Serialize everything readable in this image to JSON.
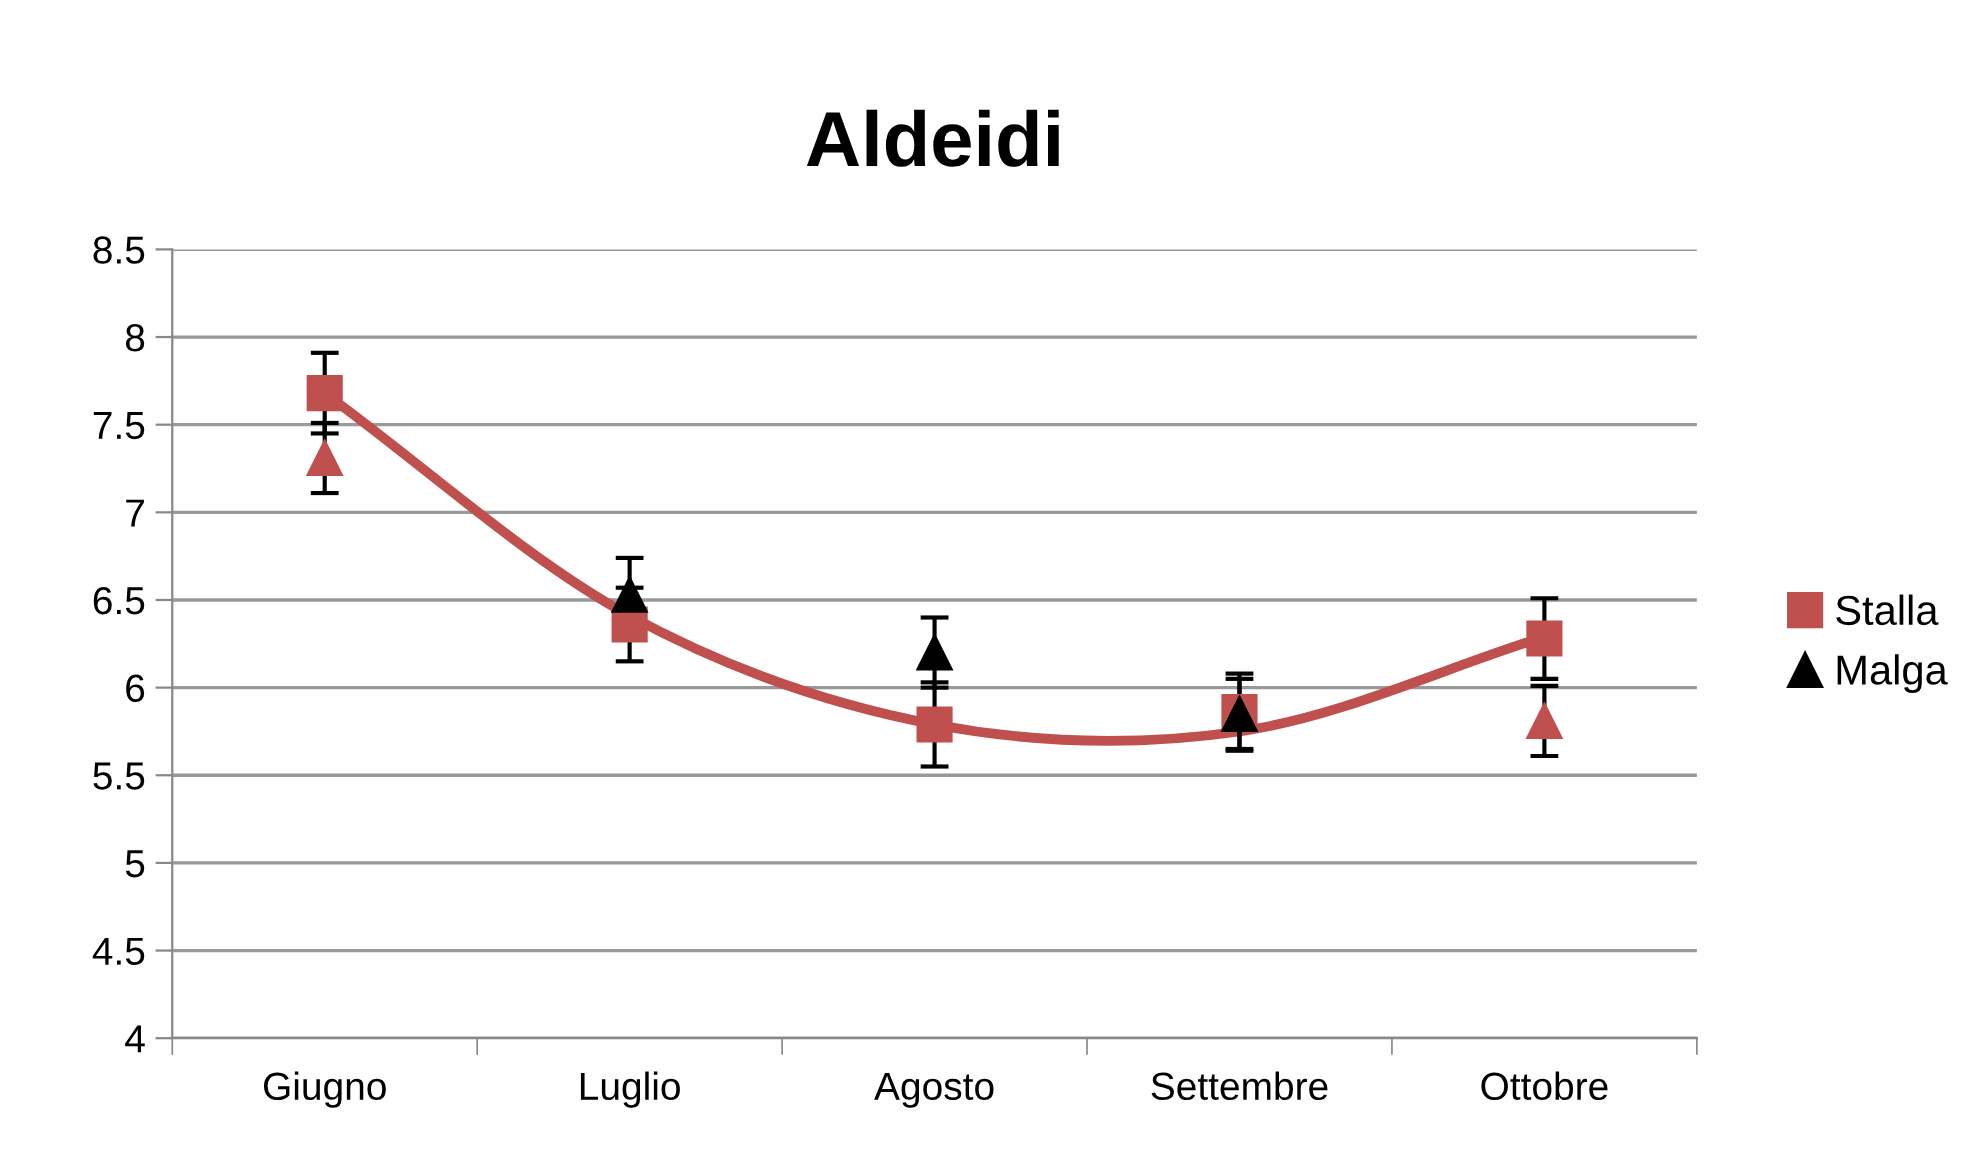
{
  "chart_data": {
    "type": "scatter",
    "title": "Aldeidi",
    "categories": [
      "Giugno",
      "Luglio",
      "Agosto",
      "Settembre",
      "Ottobre"
    ],
    "series": [
      {
        "name": "Stalla",
        "marker": "square",
        "color": "#c0504d",
        "values": [
          7.68,
          6.36,
          5.79,
          5.86,
          6.28
        ],
        "errors": [
          0.23,
          0.21,
          0.24,
          0.22,
          0.23
        ]
      },
      {
        "name": "Malga",
        "marker": "triangle",
        "color": "#000000",
        "colors": [
          "#c0504d",
          "#000000",
          "#000000",
          "#000000",
          "#c0504d"
        ],
        "values": [
          7.31,
          6.53,
          6.2,
          5.85,
          5.81
        ],
        "errors": [
          0.2,
          0.21,
          0.2,
          0.2,
          0.2
        ]
      },
      {
        "type": "line",
        "color": "#c0504d",
        "line_style": "solid",
        "marker": "none",
        "values": [
          7.68,
          6.41,
          5.79,
          5.75,
          6.29
        ]
      }
    ],
    "ylim": [
      4,
      8.5
    ],
    "yticks": [
      4,
      4.5,
      5,
      5.5,
      6,
      6.5,
      7,
      7.5,
      8,
      8.5
    ],
    "grid": "y",
    "legend": "right"
  }
}
